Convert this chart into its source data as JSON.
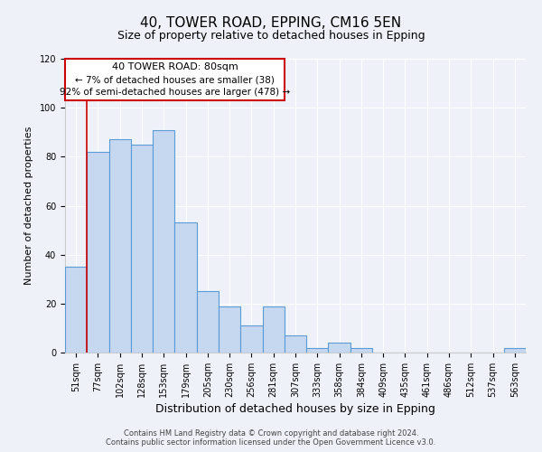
{
  "title": "40, TOWER ROAD, EPPING, CM16 5EN",
  "subtitle": "Size of property relative to detached houses in Epping",
  "xlabel": "Distribution of detached houses by size in Epping",
  "ylabel": "Number of detached properties",
  "categories": [
    "51sqm",
    "77sqm",
    "102sqm",
    "128sqm",
    "153sqm",
    "179sqm",
    "205sqm",
    "230sqm",
    "256sqm",
    "281sqm",
    "307sqm",
    "333sqm",
    "358sqm",
    "384sqm",
    "409sqm",
    "435sqm",
    "461sqm",
    "486sqm",
    "512sqm",
    "537sqm",
    "563sqm"
  ],
  "values": [
    35,
    82,
    87,
    85,
    91,
    53,
    25,
    19,
    11,
    19,
    7,
    2,
    4,
    2,
    0,
    0,
    0,
    0,
    0,
    0,
    2
  ],
  "bar_color": "#c5d8f0",
  "bar_edge_color": "#5b9bd5",
  "ylim": [
    0,
    120
  ],
  "yticks": [
    0,
    20,
    40,
    60,
    80,
    100,
    120
  ],
  "property_line_color": "#cc0000",
  "annotation_box_color": "#cc0000",
  "annotation_text_line1": "40 TOWER ROAD: 80sqm",
  "annotation_text_line2": "← 7% of detached houses are smaller (38)",
  "annotation_text_line3": "92% of semi-detached houses are larger (478) →",
  "footer_line1": "Contains HM Land Registry data © Crown copyright and database right 2024.",
  "footer_line2": "Contains public sector information licensed under the Open Government Licence v3.0.",
  "background_color": "#eef2f8",
  "plot_bg_color": "#eef2f8",
  "title_fontsize": 11,
  "subtitle_fontsize": 9,
  "xlabel_fontsize": 9,
  "ylabel_fontsize": 8,
  "tick_fontsize": 7,
  "footer_fontsize": 6,
  "grid_color": "#ffffff"
}
